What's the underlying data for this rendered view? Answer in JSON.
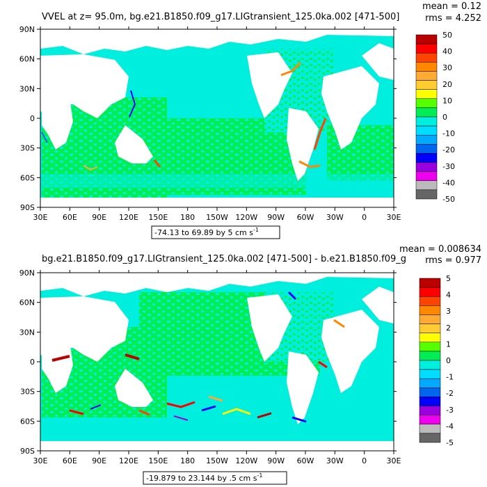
{
  "colors": {
    "ocean_zero": "#00ee55",
    "ocean_small": "#00eedd",
    "land": "#ffffff",
    "colormap": [
      "#666666",
      "#bbbbbb",
      "#ee00ee",
      "#9900dd",
      "#0000ff",
      "#0066ee",
      "#00aaff",
      "#00ddff",
      "#00eedd",
      "#00ee55",
      "#55ff00",
      "#ffff00",
      "#ffcc33",
      "#ffaa33",
      "#ff8800",
      "#ff4400",
      "#ff0000",
      "#bb0000"
    ]
  },
  "panels": [
    {
      "title": "VVEL at z=  95.0m, bg.e21.B1850.f09_g17.LIGtransient_125.0ka.002  [471-500]",
      "mean": "mean = 0.12",
      "rms": "rms = 4.252",
      "range_label": "-74.13 to 69.89 by 5 cm s",
      "range_unit_sup": "-1",
      "colorbar_labels": [
        "50",
        "40",
        "30",
        "20",
        "10",
        "0",
        "-10",
        "-20",
        "-30",
        "-40",
        "-50"
      ]
    },
    {
      "title": "bg.e21.B1850.f09_g17.LIGtransient_125.0ka.002  [471-500] - b.e21.B1850.f09_g",
      "mean": "mean = 0.008634",
      "rms": "rms = 0.977",
      "range_label": "-19.879 to 23.144 by .5 cm s",
      "range_unit_sup": "-1",
      "colorbar_labels": [
        "5",
        "4",
        "3",
        "2",
        "1",
        "0",
        "-1",
        "-2",
        "-3",
        "-4",
        "-5"
      ]
    }
  ],
  "chart_data": [
    {
      "type": "heatmap",
      "title": "VVEL at z=  95.0m, bg.e21.B1850.f09_g17.LIGtransient_125.0ka.002  [471-500]",
      "x_ticks": [
        "30E",
        "60E",
        "90E",
        "120E",
        "150E",
        "180",
        "150W",
        "120W",
        "90W",
        "60W",
        "30W",
        "0",
        "30E"
      ],
      "y_ticks": [
        "90N",
        "60N",
        "30N",
        "0",
        "30S",
        "60S",
        "90S"
      ],
      "xlim": [
        30,
        390
      ],
      "ylim": [
        -90,
        90
      ],
      "color_levels": [
        -50,
        -45,
        -40,
        -35,
        -30,
        -25,
        -20,
        -15,
        -10,
        -5,
        0,
        5,
        10,
        15,
        20,
        25,
        30,
        35,
        40,
        45,
        50
      ],
      "stats": {
        "mean": 0.12,
        "rms": 4.252,
        "min": -74.13,
        "max": 69.89,
        "interval": 5,
        "units": "cm s-1"
      }
    },
    {
      "type": "heatmap",
      "title": "bg.e21.B1850.f09_g17.LIGtransient_125.0ka.002  [471-500] - b.e21.B1850.f09_g",
      "x_ticks": [
        "30E",
        "60E",
        "90E",
        "120E",
        "150E",
        "180",
        "150W",
        "120W",
        "90W",
        "60W",
        "30W",
        "0",
        "30E"
      ],
      "y_ticks": [
        "90N",
        "60N",
        "30N",
        "0",
        "30S",
        "60S",
        "90S"
      ],
      "xlim": [
        30,
        390
      ],
      "ylim": [
        -90,
        90
      ],
      "color_levels": [
        -5,
        -4.5,
        -4,
        -3.5,
        -3,
        -2.5,
        -2,
        -1.5,
        -1,
        -0.5,
        0,
        0.5,
        1,
        1.5,
        2,
        2.5,
        3,
        3.5,
        4,
        4.5,
        5
      ],
      "stats": {
        "mean": 0.008634,
        "rms": 0.977,
        "min": -19.879,
        "max": 23.144,
        "interval": 0.5,
        "units": "cm s-1"
      }
    }
  ]
}
